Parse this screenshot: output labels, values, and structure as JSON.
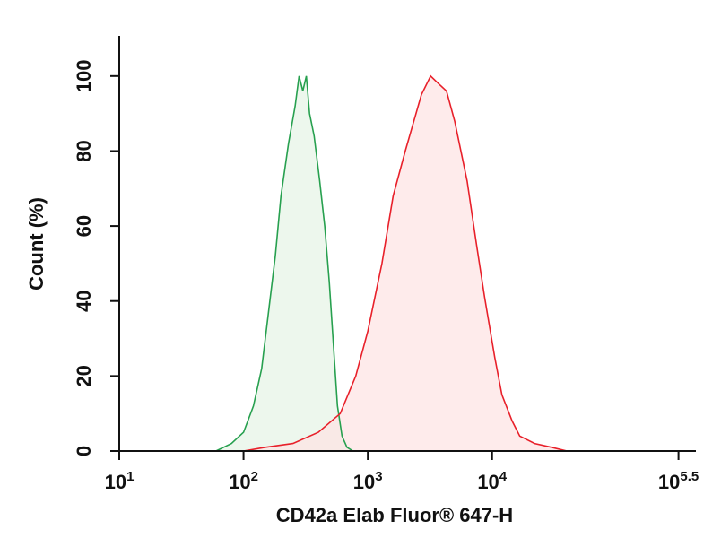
{
  "chart_data": {
    "type": "histogram-overlay",
    "x_label": "CD42a Elab Fluor® 647-H",
    "y_label": "Count (%)",
    "x_log": true,
    "xlim": [
      10,
      436516
    ],
    "xticks": [
      {
        "value": 10,
        "base": "10",
        "exp": "1"
      },
      {
        "value": 100,
        "base": "10",
        "exp": "2"
      },
      {
        "value": 1000,
        "base": "10",
        "exp": "3"
      },
      {
        "value": 10000,
        "base": "10",
        "exp": "4"
      },
      {
        "value": 316228,
        "base": "10",
        "exp": "5.5"
      }
    ],
    "ylim": [
      0,
      110
    ],
    "yticks": [
      0,
      20,
      40,
      60,
      80,
      100
    ],
    "series": [
      {
        "color": "#27a04f",
        "fill": "#e6f3e6",
        "x": [
          60,
          80,
          100,
          120,
          140,
          160,
          180,
          200,
          230,
          260,
          280,
          300,
          320,
          340,
          370,
          410,
          450,
          490,
          530,
          570,
          620,
          680,
          760
        ],
        "values": [
          0,
          2,
          5,
          12,
          22,
          38,
          52,
          68,
          82,
          92,
          100,
          96,
          100,
          90,
          84,
          72,
          60,
          45,
          28,
          12,
          4,
          1,
          0
        ]
      },
      {
        "color": "#e8202a",
        "fill": "#fde2e2",
        "x": [
          100,
          150,
          250,
          400,
          600,
          800,
          1000,
          1300,
          1600,
          2000,
          2300,
          2700,
          3200,
          3700,
          4300,
          5000,
          6300,
          7500,
          8700,
          10500,
          12000,
          14500,
          16700,
          22000,
          30000,
          40000
        ],
        "values": [
          0,
          1,
          2,
          5,
          10,
          20,
          32,
          50,
          68,
          80,
          87,
          95,
          100,
          98,
          96,
          88,
          72,
          55,
          41,
          25,
          15,
          8,
          4,
          2,
          1,
          0
        ]
      }
    ]
  }
}
